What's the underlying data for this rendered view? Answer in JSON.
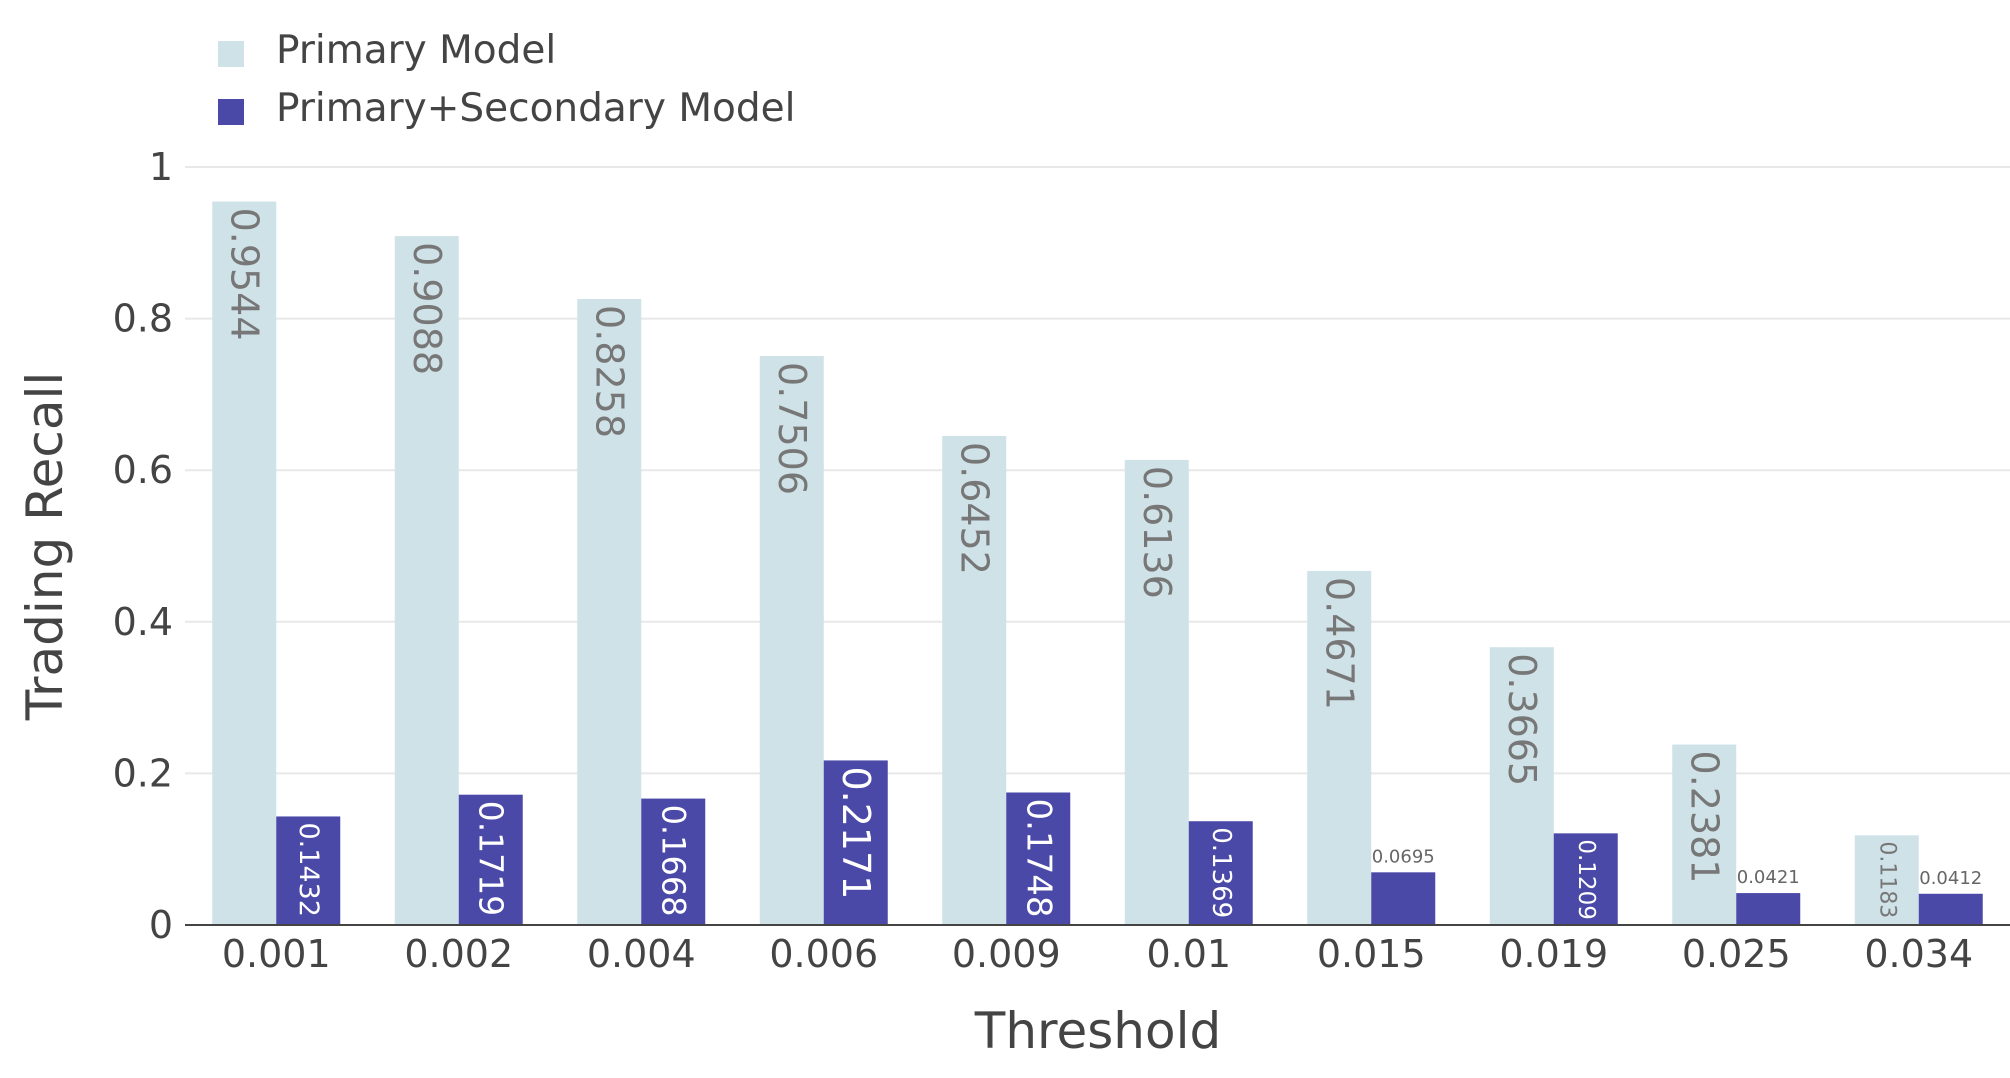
{
  "chart_data": {
    "type": "bar",
    "categories": [
      "0.001",
      "0.002",
      "0.004",
      "0.006",
      "0.009",
      "0.01",
      "0.015",
      "0.019",
      "0.025",
      "0.034"
    ],
    "series": [
      {
        "name": "Primary Model",
        "color": "#cfe2e8",
        "label_color": "#777777",
        "values": [
          0.9544,
          0.9088,
          0.8258,
          0.7506,
          0.6452,
          0.6136,
          0.4671,
          0.3665,
          0.2381,
          0.1183
        ],
        "labels": [
          "0.9544",
          "0.9088",
          "0.8258",
          "0.7506",
          "0.6452",
          "0.6136",
          "0.4671",
          "0.3665",
          "0.2381",
          "0.1183"
        ]
      },
      {
        "name": "Primary+Secondary Model",
        "color": "#4a49a8",
        "label_color": "#ffffff",
        "values": [
          0.1432,
          0.1719,
          0.1668,
          0.2171,
          0.1748,
          0.1369,
          0.0695,
          0.1209,
          0.0421,
          0.0412
        ],
        "labels": [
          "0.1432",
          "0.1719",
          "0.1668",
          "0.2171",
          "0.1748",
          "0.1369",
          "0.0695",
          "0.1209",
          "0.0421",
          "0.0412"
        ]
      }
    ],
    "xlabel": "Threshold",
    "ylabel": "Trading Recall",
    "ylim": [
      0,
      1
    ],
    "yticks": [
      0,
      0.2,
      0.4,
      0.6,
      0.8,
      1
    ],
    "ytick_labels": [
      "0",
      "0.2",
      "0.4",
      "0.6",
      "0.8",
      "1"
    ],
    "grid": true,
    "legend_position": "top-left"
  }
}
